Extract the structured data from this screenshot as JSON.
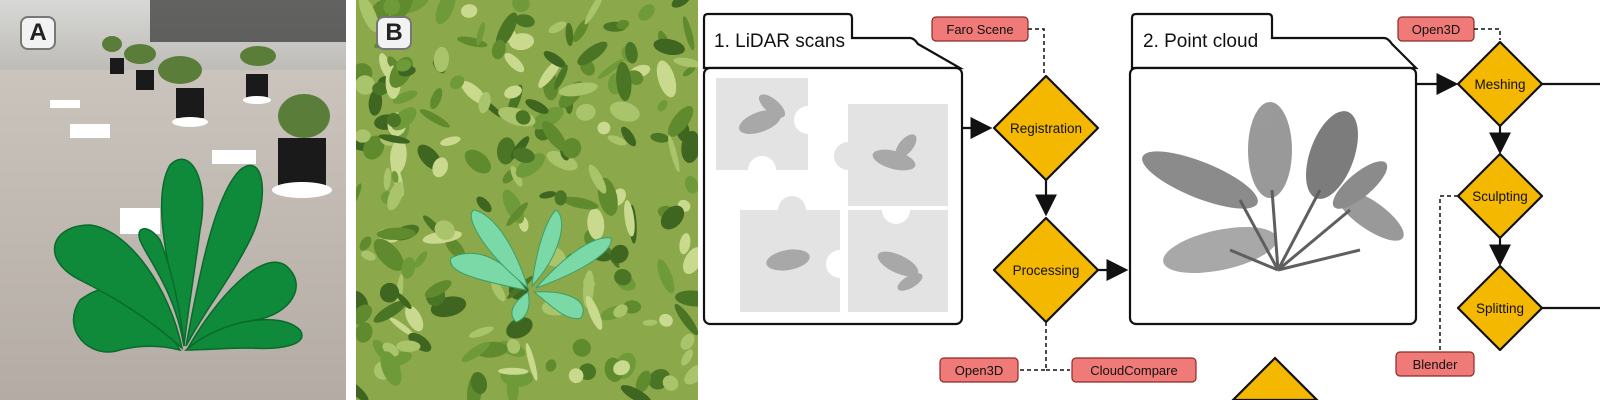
{
  "panels": {
    "a_label": "A",
    "b_label": "B"
  },
  "flow": {
    "box1_title": "1. LiDAR scans",
    "box2_title": "2. Point cloud",
    "steps": {
      "registration": "Registration",
      "processing": "Processing",
      "meshing": "Meshing",
      "sculpting": "Sculpting",
      "splitting": "Splitting"
    },
    "tools": {
      "faro": "Faro Scene",
      "open3d_top": "Open3D",
      "open3d_bottom": "Open3D",
      "cloudcompare": "CloudCompare",
      "blender": "Blender"
    }
  },
  "colors": {
    "diamond": "#f5b800",
    "tag": "#f07a78",
    "leaf_green": "#0f8a3a",
    "puzzle_bg": "#e3e3e3"
  },
  "icons": [
    "puzzle-icon",
    "point-cloud-plant"
  ]
}
